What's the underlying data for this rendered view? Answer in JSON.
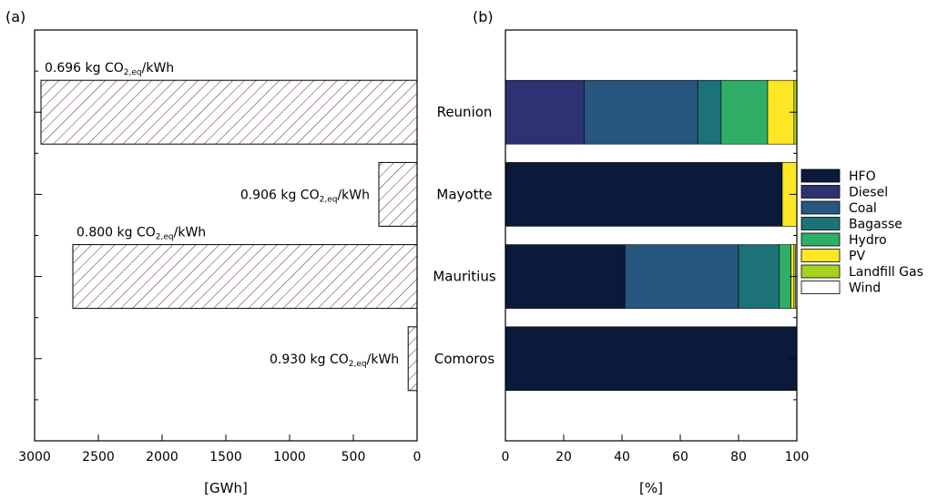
{
  "chart_data": [
    {
      "panel_label": "(a)",
      "type": "bar",
      "orientation": "horizontal",
      "categories": [
        "Reunion",
        "Mayotte",
        "Mauritius",
        "Comoros"
      ],
      "values": [
        2950,
        300,
        2700,
        70
      ],
      "annotations": [
        {
          "category": "Reunion",
          "value": "0.696",
          "unit_pre": "kg CO",
          "sub": "2,eq",
          "unit_post": "/kWh"
        },
        {
          "category": "Mayotte",
          "value": "0.906",
          "unit_pre": "kg CO",
          "sub": "2,eq",
          "unit_post": "/kWh"
        },
        {
          "category": "Mauritius",
          "value": "0.800",
          "unit_pre": "kg CO",
          "sub": "2,eq",
          "unit_post": "/kWh"
        },
        {
          "category": "Comoros",
          "value": "0.930",
          "unit_pre": "kg CO",
          "sub": "2,eq",
          "unit_post": "/kWh"
        }
      ],
      "xlabel": "[GWh]",
      "xlim": [
        3000,
        0
      ],
      "x_reversed": true,
      "xticks": [
        3000,
        2500,
        2000,
        1500,
        1000,
        500,
        0
      ],
      "xtick_labels": [
        "3000",
        "2500",
        "2000",
        "1500",
        "1000",
        "500",
        "0"
      ],
      "bar_fill": "hatched",
      "hatch_color": "#5a2a4a",
      "grid": false
    },
    {
      "panel_label": "(b)",
      "type": "bar",
      "orientation": "horizontal",
      "stacked": true,
      "categories": [
        "Reunion",
        "Mayotte",
        "Mauritius",
        "Comoros"
      ],
      "series": [
        {
          "name": "HFO",
          "color": "#0b1a3a",
          "values": [
            0,
            95,
            41,
            100
          ]
        },
        {
          "name": "Diesel",
          "color": "#2e3272",
          "values": [
            27,
            0,
            0,
            0
          ]
        },
        {
          "name": "Coal",
          "color": "#27567f",
          "values": [
            39,
            0,
            39,
            0
          ]
        },
        {
          "name": "Bagasse",
          "color": "#1d7277",
          "values": [
            8,
            0,
            14,
            0
          ]
        },
        {
          "name": "Hydro",
          "color": "#2fae68",
          "values": [
            16,
            0,
            4,
            0
          ]
        },
        {
          "name": "PV",
          "color": "#fde725",
          "values": [
            9,
            5,
            1,
            0
          ]
        },
        {
          "name": "Landfill Gas",
          "color": "#a6d320",
          "values": [
            1,
            0,
            0.5,
            0
          ]
        },
        {
          "name": "Wind",
          "color": "#ffffff",
          "values": [
            0,
            0,
            0.5,
            0
          ]
        }
      ],
      "xlabel": "[%]",
      "xlim": [
        0,
        100
      ],
      "xticks": [
        0,
        20,
        40,
        60,
        80,
        100
      ],
      "xtick_labels": [
        "0",
        "20",
        "40",
        "60",
        "80",
        "100"
      ],
      "legend_position": "right",
      "grid": false
    }
  ]
}
